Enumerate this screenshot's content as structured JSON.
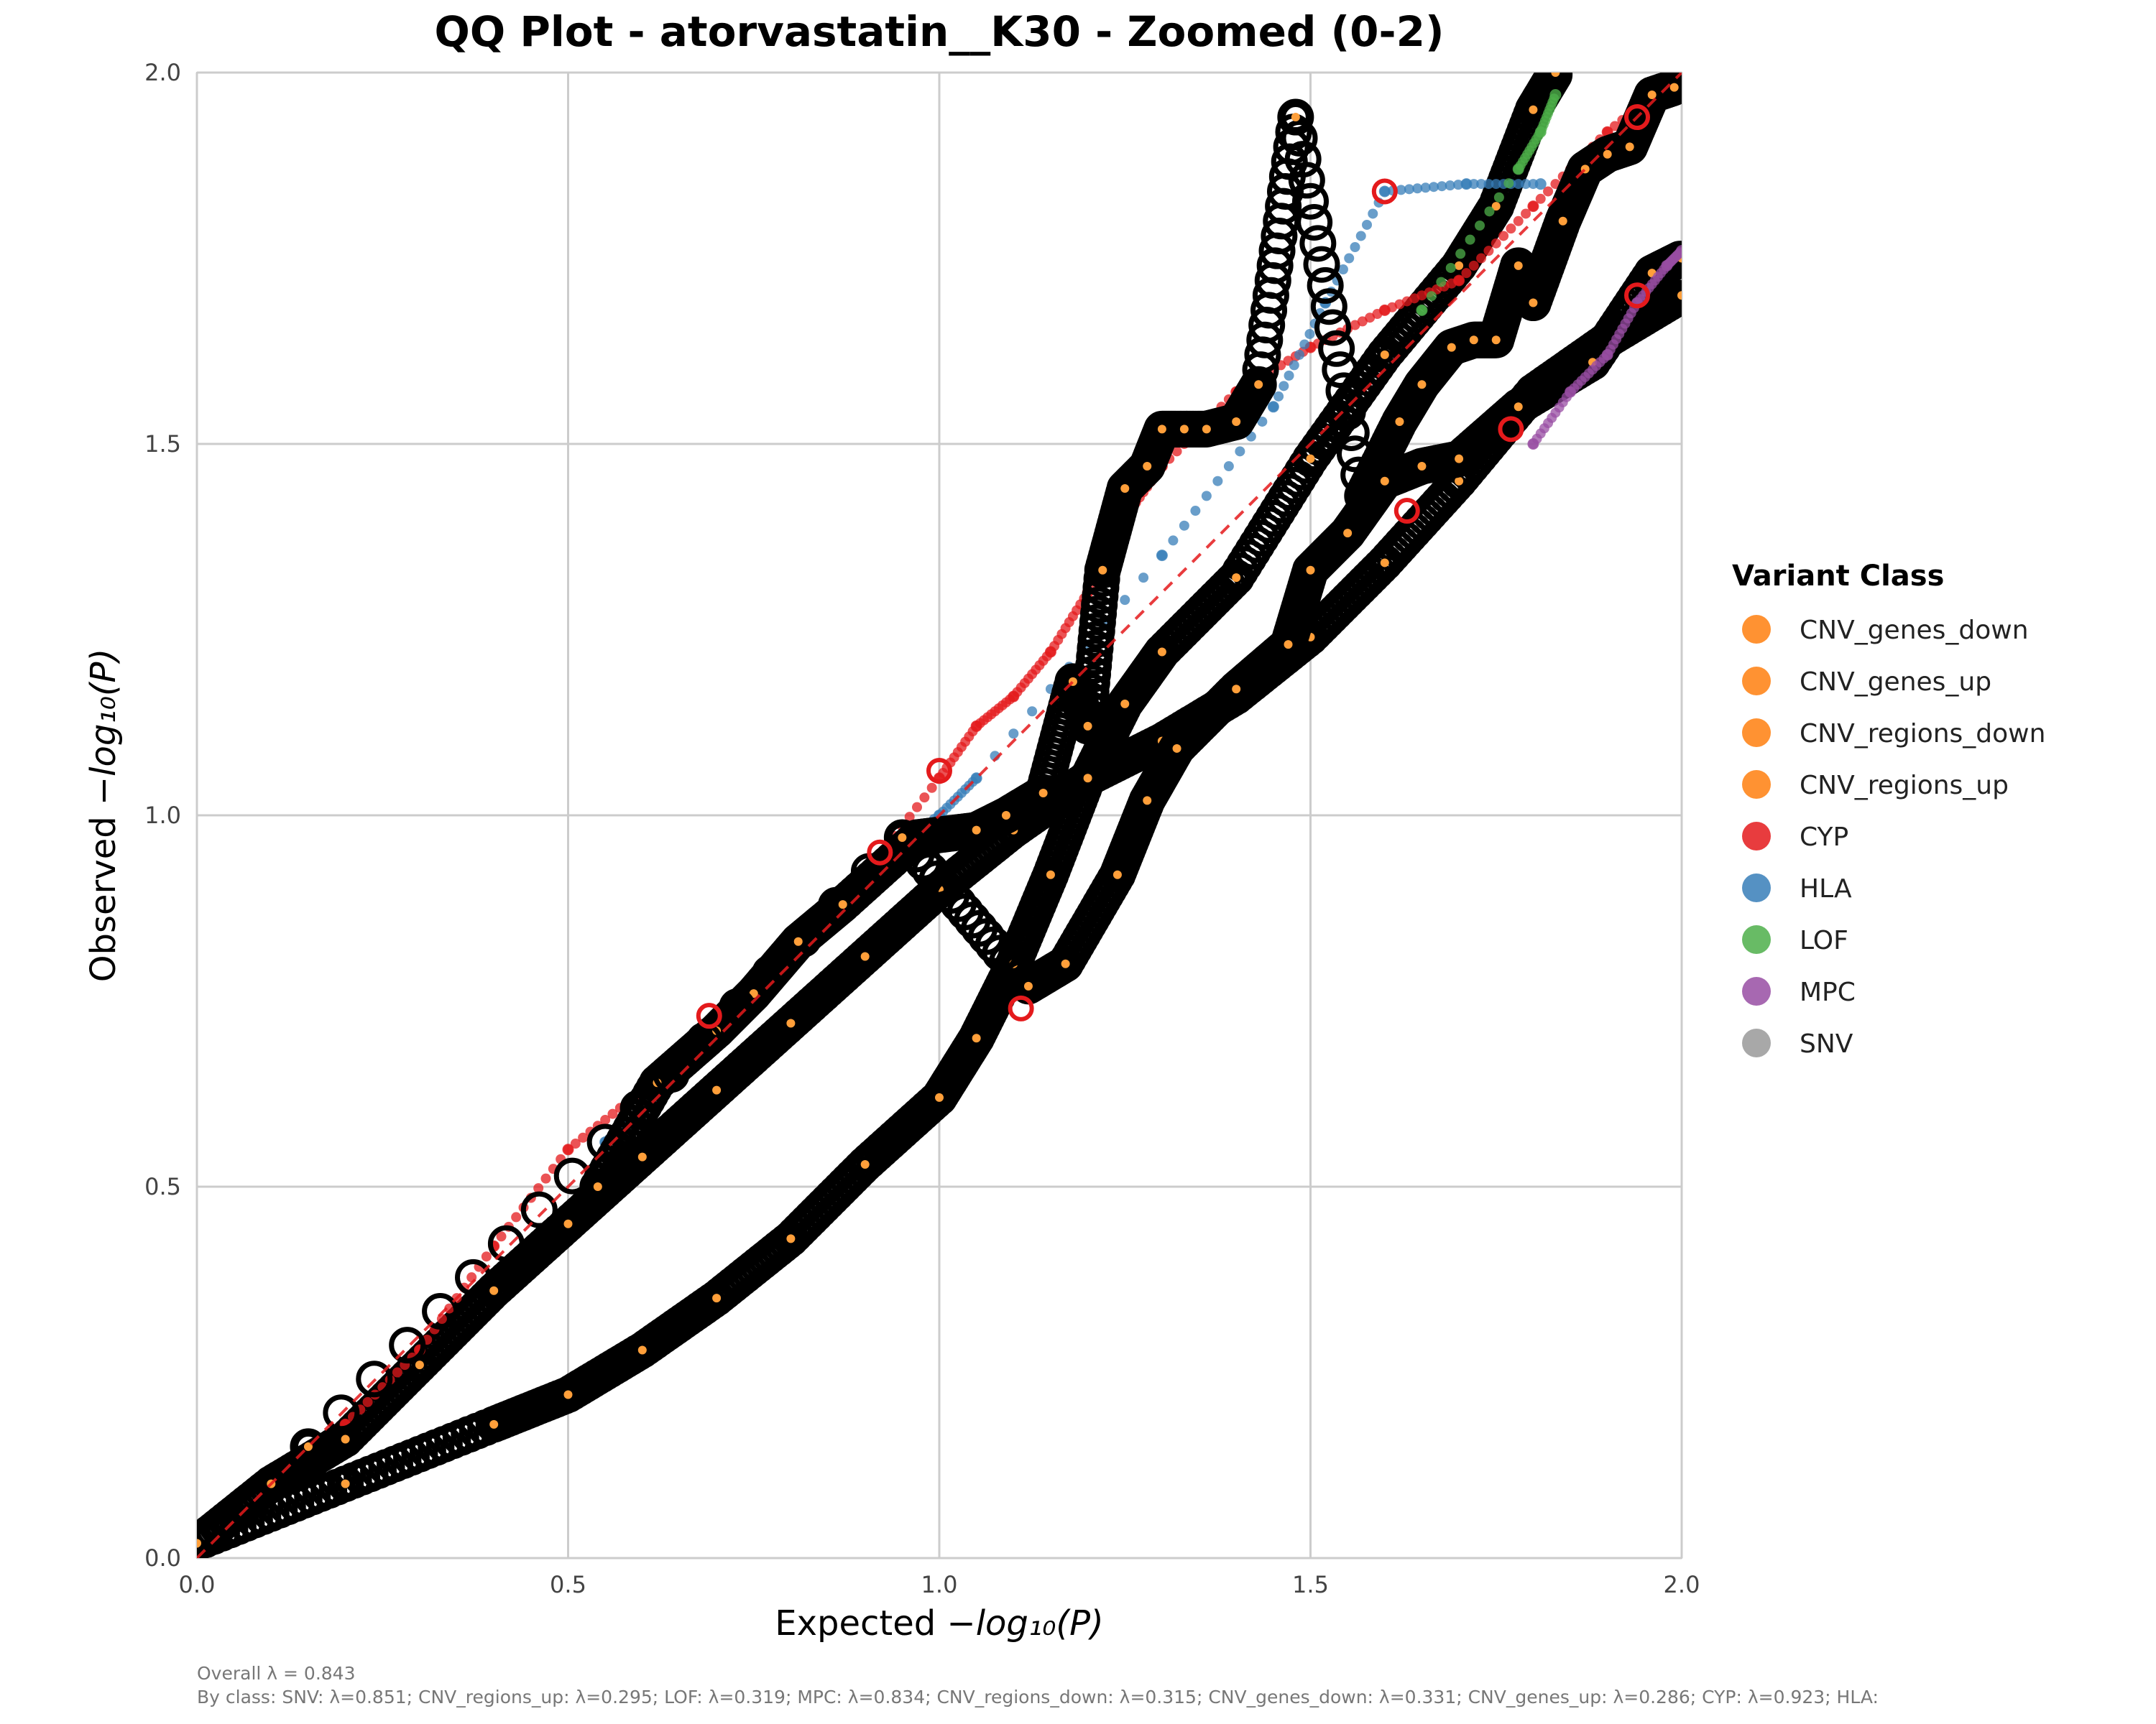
{
  "chart_data": {
    "type": "scatter",
    "title": "QQ Plot - atorvastatin__K30 - Zoomed (0-2)",
    "xlabel": "Expected",
    "ylabel": "Observed",
    "xlim": [
      0,
      2
    ],
    "ylim": [
      0,
      2
    ],
    "x_ticks": [
      "0.0",
      "0.5",
      "1.0",
      "1.5",
      "2.0"
    ],
    "y_ticks": [
      "0.0",
      "0.5",
      "1.0",
      "1.5",
      "2.0"
    ],
    "grid": true,
    "reference_line": {
      "style": "dashed",
      "color": "#e41a1c",
      "from": [
        0,
        0
      ],
      "to": [
        2,
        2
      ]
    },
    "legend": {
      "title": "Variant Class",
      "placement": "right",
      "items": [
        {
          "label": "CNV_genes_down",
          "color": "#ff7f0e"
        },
        {
          "label": "CNV_genes_up",
          "color": "#ff7f0e"
        },
        {
          "label": "CNV_regions_down",
          "color": "#ff7f0e"
        },
        {
          "label": "CNV_regions_up",
          "color": "#ff7f0e"
        },
        {
          "label": "CYP",
          "color": "#e41a1c"
        },
        {
          "label": "HLA",
          "color": "#377eb8"
        },
        {
          "label": "LOF",
          "color": "#4daf4a"
        },
        {
          "label": "MPC",
          "color": "#984ea3"
        },
        {
          "label": "SNV",
          "color": "#999999"
        }
      ]
    },
    "series": [
      {
        "class": "SNV",
        "color": "#000000",
        "points": [
          [
            0.0,
            0.02
          ],
          [
            0.1,
            0.1
          ],
          [
            0.2,
            0.16
          ],
          [
            0.3,
            0.26
          ],
          [
            0.4,
            0.36
          ],
          [
            0.5,
            0.45
          ],
          [
            0.6,
            0.54
          ],
          [
            0.7,
            0.63
          ],
          [
            0.8,
            0.72
          ],
          [
            0.9,
            0.81
          ],
          [
            1.0,
            0.9
          ],
          [
            1.1,
            0.98
          ],
          [
            1.2,
            1.05
          ],
          [
            1.3,
            1.1
          ],
          [
            1.4,
            1.16
          ],
          [
            1.5,
            1.24
          ],
          [
            1.6,
            1.34
          ],
          [
            1.7,
            1.45
          ],
          [
            1.8,
            1.57
          ],
          [
            1.9,
            1.64
          ],
          [
            2.0,
            1.7
          ]
        ]
      },
      {
        "class": "CNV_genes_down",
        "color": "#000000",
        "points": [
          [
            0.0,
            0.02
          ],
          [
            0.2,
            0.1
          ],
          [
            0.4,
            0.18
          ],
          [
            0.5,
            0.22
          ],
          [
            0.6,
            0.28
          ],
          [
            0.7,
            0.35
          ],
          [
            0.8,
            0.43
          ],
          [
            0.9,
            0.53
          ],
          [
            1.0,
            0.62
          ],
          [
            1.05,
            0.7
          ],
          [
            1.1,
            0.8
          ],
          [
            1.15,
            0.92
          ],
          [
            1.2,
            1.05
          ],
          [
            1.25,
            1.15
          ],
          [
            1.3,
            1.22
          ],
          [
            1.4,
            1.32
          ],
          [
            1.5,
            1.48
          ],
          [
            1.6,
            1.62
          ],
          [
            1.7,
            1.74
          ],
          [
            1.75,
            1.82
          ],
          [
            1.8,
            1.95
          ],
          [
            1.83,
            2.0
          ]
        ]
      },
      {
        "class": "CYP",
        "color": "#e41a1c",
        "points": [
          [
            0.2,
            0.18
          ],
          [
            0.3,
            0.28
          ],
          [
            0.4,
            0.42
          ],
          [
            0.5,
            0.55
          ],
          [
            0.6,
            0.63
          ],
          [
            0.7,
            0.73
          ],
          [
            0.8,
            0.83
          ],
          [
            0.9,
            0.92
          ],
          [
            1.0,
            1.05
          ],
          [
            1.05,
            1.12
          ],
          [
            1.1,
            1.16
          ],
          [
            1.15,
            1.22
          ],
          [
            1.2,
            1.3
          ],
          [
            1.25,
            1.4
          ],
          [
            1.3,
            1.47
          ],
          [
            1.4,
            1.57
          ],
          [
            1.5,
            1.63
          ],
          [
            1.6,
            1.68
          ],
          [
            1.7,
            1.72
          ],
          [
            1.8,
            1.82
          ],
          [
            1.9,
            1.92
          ],
          [
            2.0,
            2.0
          ]
        ]
      },
      {
        "class": "HLA",
        "color": "#377eb8",
        "points": [
          [
            0.55,
            0.56
          ],
          [
            0.6,
            0.6
          ],
          [
            0.7,
            0.7
          ],
          [
            0.78,
            0.78
          ],
          [
            0.85,
            0.88
          ],
          [
            0.93,
            0.95
          ],
          [
            1.0,
            1.0
          ],
          [
            1.05,
            1.05
          ],
          [
            1.3,
            1.35
          ],
          [
            1.45,
            1.55
          ],
          [
            1.52,
            1.69
          ],
          [
            1.6,
            1.84
          ],
          [
            1.71,
            1.85
          ],
          [
            1.81,
            1.85
          ]
        ]
      },
      {
        "class": "CNV_regions_up",
        "color": "#000000",
        "points": [
          [
            0.54,
            0.5
          ],
          [
            0.62,
            0.64
          ],
          [
            0.7,
            0.71
          ],
          [
            0.75,
            0.76
          ],
          [
            0.81,
            0.83
          ],
          [
            0.87,
            0.88
          ],
          [
            0.97,
            0.97
          ],
          [
            1.05,
            0.98
          ],
          [
            1.09,
            1.0
          ],
          [
            1.14,
            1.03
          ],
          [
            1.18,
            1.18
          ],
          [
            1.2,
            1.12
          ],
          [
            1.22,
            1.33
          ],
          [
            1.25,
            1.44
          ],
          [
            1.28,
            1.47
          ],
          [
            1.3,
            1.52
          ],
          [
            1.33,
            1.52
          ],
          [
            1.36,
            1.52
          ],
          [
            1.4,
            1.53
          ],
          [
            1.43,
            1.58
          ],
          [
            1.48,
            1.94
          ],
          [
            1.57,
            1.43
          ],
          [
            1.62,
            1.53
          ],
          [
            1.65,
            1.58
          ],
          [
            1.69,
            1.63
          ],
          [
            1.72,
            1.64
          ],
          [
            1.75,
            1.64
          ],
          [
            1.78,
            1.74
          ],
          [
            1.8,
            1.69
          ],
          [
            1.84,
            1.8
          ],
          [
            1.87,
            1.87
          ],
          [
            1.9,
            1.89
          ],
          [
            1.93,
            1.9
          ],
          [
            1.96,
            1.97
          ],
          [
            1.99,
            1.98
          ]
        ]
      },
      {
        "class": "CNV_genes_up",
        "color": "#000000",
        "points": [
          [
            0.15,
            0.15
          ],
          [
            0.95,
            0.97
          ],
          [
            1.12,
            0.77
          ],
          [
            1.17,
            0.8
          ],
          [
            1.24,
            0.92
          ],
          [
            1.28,
            1.02
          ],
          [
            1.32,
            1.09
          ],
          [
            1.4,
            1.17
          ],
          [
            1.47,
            1.23
          ],
          [
            1.5,
            1.33
          ],
          [
            1.55,
            1.38
          ],
          [
            1.6,
            1.45
          ],
          [
            1.65,
            1.47
          ],
          [
            1.7,
            1.48
          ],
          [
            1.78,
            1.55
          ],
          [
            1.88,
            1.61
          ],
          [
            1.96,
            1.73
          ],
          [
            2.0,
            1.75
          ]
        ]
      },
      {
        "class": "MPC",
        "color": "#984ea3",
        "points": [
          [
            1.8,
            1.5
          ],
          [
            1.85,
            1.57
          ],
          [
            1.9,
            1.62
          ],
          [
            1.94,
            1.69
          ],
          [
            1.98,
            1.74
          ],
          [
            2.0,
            1.76
          ]
        ]
      },
      {
        "class": "LOF",
        "color": "#4daf4a",
        "points": [
          [
            1.65,
            1.68
          ],
          [
            1.78,
            1.87
          ],
          [
            1.81,
            1.92
          ],
          [
            1.83,
            1.97
          ]
        ]
      }
    ]
  },
  "footer": {
    "overall": "Overall λ = 0.843",
    "by_class": "By class: SNV: λ=0.851; CNV_regions_up: λ=0.295; LOF: λ=0.319; MPC: λ=0.834; CNV_regions_down: λ=0.315; CNV_genes_down: λ=0.331; CNV_genes_up: λ=0.286; CYP: λ=0.923; HLA:"
  }
}
